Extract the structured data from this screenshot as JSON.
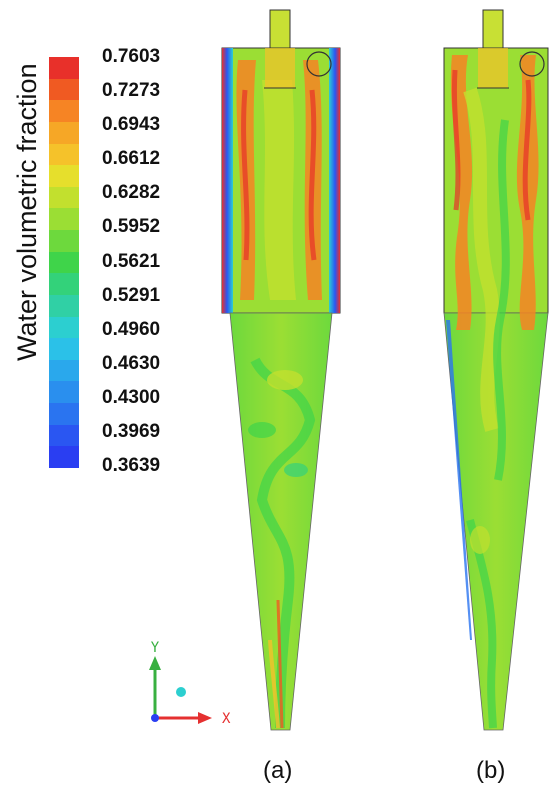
{
  "legend": {
    "title": "Water volumetric fraction",
    "ticks": [
      "0.7603",
      "0.7273",
      "0.6943",
      "0.6612",
      "0.6282",
      "0.5952",
      "0.5621",
      "0.5291",
      "0.4960",
      "0.4630",
      "0.4300",
      "0.3969",
      "0.3639"
    ],
    "colors": [
      "#e8302a",
      "#f05a22",
      "#f68424",
      "#f6a726",
      "#f5c22a",
      "#e6df2c",
      "#c2e02e",
      "#9bde34",
      "#6dd93d",
      "#3fd44a",
      "#33d27a",
      "#30d0a5",
      "#2ccfd0",
      "#2bc1e8",
      "#2aa8ec",
      "#2a8fee",
      "#2a74f0",
      "#2a56f2",
      "#2a3ef2"
    ]
  },
  "panels": {
    "a_label": "(a)",
    "b_label": "(b)"
  },
  "axes": {
    "x_label": "X",
    "y_label": "Y",
    "x_color": "#e53030",
    "y_color": "#38b040"
  }
}
